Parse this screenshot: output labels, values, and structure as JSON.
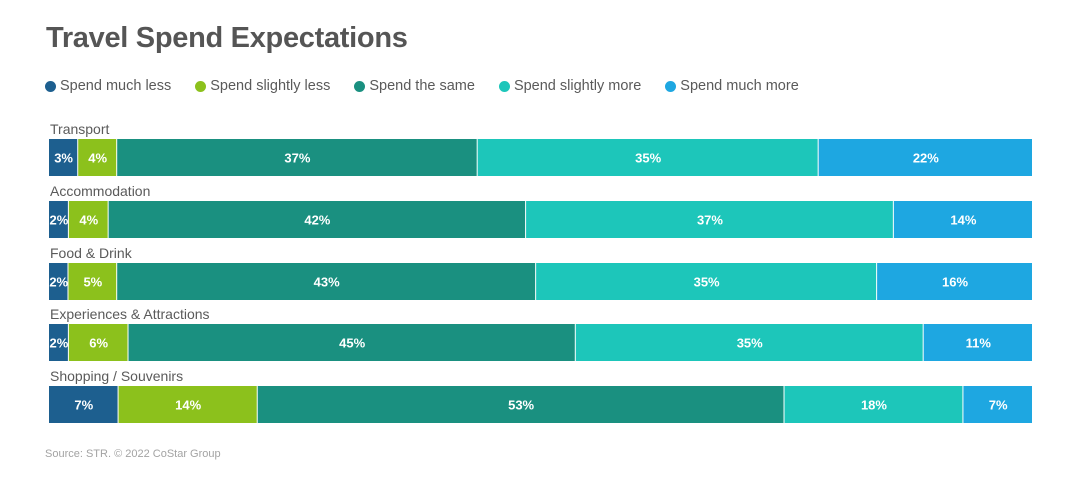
{
  "title": "Travel Spend Expectations",
  "source": "Source: STR. © 2022 CoStar Group",
  "colors": [
    "#1d5f8f",
    "#8cc11c",
    "#1a9080",
    "#1dc6ba",
    "#1ea7e1"
  ],
  "chart_data": {
    "type": "bar",
    "orientation": "horizontal-stacked-100",
    "title": "Travel Spend Expectations",
    "categories": [
      "Transport",
      "Accommodation",
      "Food & Drink",
      "Experiences & Attractions",
      "Shopping / Souvenirs"
    ],
    "series": [
      {
        "name": "Spend much less",
        "values": [
          3,
          2,
          2,
          2,
          7
        ],
        "labels": [
          "3%",
          "2%",
          "2%",
          "2%",
          "7%"
        ]
      },
      {
        "name": "Spend slightly less",
        "values": [
          4,
          4,
          5,
          6,
          14
        ],
        "labels": [
          "4%",
          "4%",
          "5%",
          "6%",
          "14%"
        ]
      },
      {
        "name": "Spend the same",
        "values": [
          37,
          42,
          43,
          45,
          53
        ],
        "labels": [
          "37%",
          "42%",
          "43%",
          "45%",
          "53%"
        ]
      },
      {
        "name": "Spend slightly more",
        "values": [
          35,
          37,
          35,
          35,
          18
        ],
        "labels": [
          "35%",
          "37%",
          "35%",
          "35%",
          "18%"
        ]
      },
      {
        "name": "Spend much more",
        "values": [
          22,
          14,
          16,
          11,
          7
        ],
        "labels": [
          "22%",
          "14%",
          "16%",
          "11%",
          "7%"
        ]
      }
    ],
    "legend_position": "top-left",
    "grid": false
  }
}
